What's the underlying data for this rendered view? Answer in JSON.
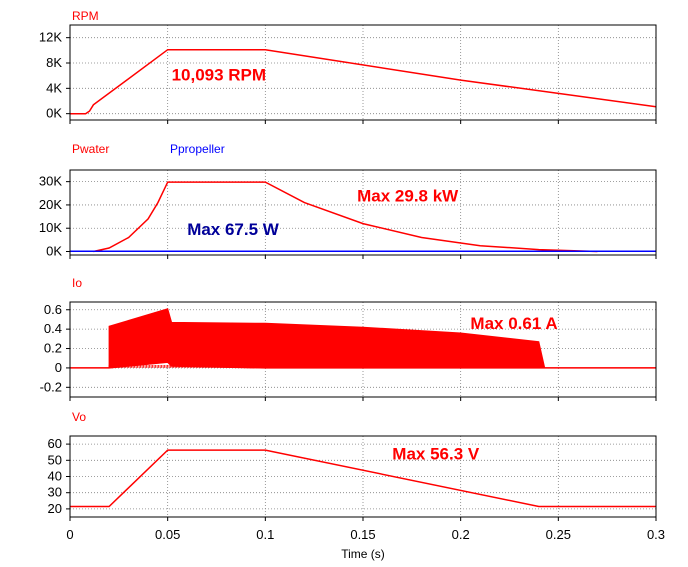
{
  "chart_data": [
    {
      "type": "line",
      "trace_labels": [
        "RPM"
      ],
      "ytick_labels": [
        "12K",
        "8K",
        "4K",
        "0K"
      ],
      "ytick_values": [
        12000,
        8000,
        4000,
        0
      ],
      "ylim": [
        -1000,
        14000
      ],
      "xlim": [
        0,
        0.3
      ],
      "grid": true,
      "series": [
        {
          "name": "RPM",
          "color": "#ff0000",
          "x": [
            0,
            0.008,
            0.01,
            0.012,
            0.05,
            0.1,
            0.2,
            0.25,
            0.3
          ],
          "y": [
            0,
            0,
            400,
            1400,
            10093,
            10093,
            5300,
            3200,
            1100
          ]
        }
      ],
      "annotations": [
        {
          "text": "10,093 RPM",
          "color": "#ff0000",
          "x": 0.052,
          "y": 5200
        }
      ]
    },
    {
      "type": "line",
      "trace_labels": [
        "Pwater",
        "Ppropeller"
      ],
      "ytick_labels": [
        "30K",
        "20K",
        "10K",
        "0K"
      ],
      "ytick_values": [
        30000,
        20000,
        10000,
        0
      ],
      "ylim": [
        -1500,
        35000
      ],
      "xlim": [
        0,
        0.3
      ],
      "grid": true,
      "series": [
        {
          "name": "Pwater",
          "color": "#ff0000",
          "x": [
            0.012,
            0.02,
            0.03,
            0.04,
            0.045,
            0.05,
            0.1,
            0.12,
            0.15,
            0.18,
            0.21,
            0.24,
            0.27
          ],
          "y": [
            0,
            1500,
            6000,
            14000,
            21000,
            29800,
            29800,
            21000,
            12000,
            6000,
            2500,
            800,
            0
          ]
        },
        {
          "name": "Ppropeller",
          "color": "#0000ff",
          "x": [
            0,
            0.3
          ],
          "y": [
            67.5,
            67.5
          ]
        }
      ],
      "annotations": [
        {
          "text": "Max 29.8 kW",
          "color": "#ff0000",
          "x": 0.147,
          "y": 21500
        },
        {
          "text": "Max 67.5 W",
          "color": "#000099",
          "x": 0.06,
          "y": 7000
        }
      ]
    },
    {
      "type": "line",
      "trace_labels": [
        "Io"
      ],
      "ytick_labels": [
        "0.6",
        "0.4",
        "0.2",
        "0",
        "-0.2"
      ],
      "ytick_values": [
        0.6,
        0.4,
        0.2,
        0,
        -0.2
      ],
      "ylim": [
        -0.3,
        0.68
      ],
      "xlim": [
        0,
        0.3
      ],
      "grid": true,
      "series": [
        {
          "name": "Io",
          "color": "#ff0000",
          "x": [
            0,
            0.02,
            0.02,
            0.05,
            0.052,
            0.1,
            0.15,
            0.2,
            0.24,
            0.243,
            0.3
          ],
          "y": [
            0,
            0,
            0.43,
            0.61,
            0.47,
            0.46,
            0.42,
            0.36,
            0.27,
            0,
            0
          ],
          "y_low": [
            0,
            0,
            0,
            0.06,
            0.02,
            0,
            0,
            0,
            0,
            0,
            0
          ]
        }
      ],
      "annotations": [
        {
          "text": "Max 0.61 A",
          "color": "#ff0000",
          "x": 0.205,
          "y": 0.4
        }
      ]
    },
    {
      "type": "line",
      "trace_labels": [
        "Vo"
      ],
      "ytick_labels": [
        "60",
        "50",
        "40",
        "30",
        "20"
      ],
      "ytick_values": [
        60,
        50,
        40,
        30,
        20
      ],
      "ylim": [
        15,
        65
      ],
      "xlim": [
        0,
        0.3
      ],
      "grid": true,
      "series": [
        {
          "name": "Vo",
          "color": "#ff0000",
          "x": [
            0,
            0.02,
            0.05,
            0.1,
            0.24,
            0.3
          ],
          "y": [
            21.5,
            21.5,
            56.3,
            56.3,
            21.5,
            21.5
          ]
        }
      ],
      "annotations": [
        {
          "text": "Max 56.3 V",
          "color": "#ff0000",
          "x": 0.165,
          "y": 50.5
        }
      ]
    }
  ],
  "xaxis": {
    "ticks": [
      0,
      0.05,
      0.1,
      0.15,
      0.2,
      0.25,
      0.3
    ],
    "tick_labels": [
      "0",
      "0.05",
      "0.1",
      "0.15",
      "0.2",
      "0.25",
      "0.3"
    ],
    "label": "Time (s)"
  },
  "colors": {
    "trace_red": "#ff0000",
    "trace_blue": "#0000ff",
    "label_blue": "#000099",
    "frame": "#000000",
    "grid": "#808080"
  }
}
